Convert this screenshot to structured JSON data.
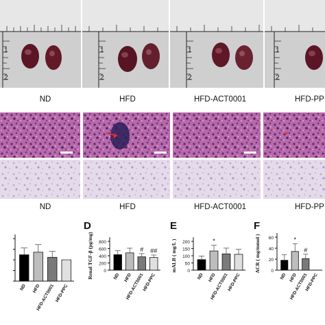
{
  "figure": {
    "groups_row1": [
      "ND",
      "HFD",
      "HFD-ACT0001",
      "HFD-PP"
    ],
    "groups_row2": [
      "ND",
      "HFD",
      "HFD-ACT0001",
      "HFD-PP"
    ],
    "ruler_ticks": [
      "1",
      "2"
    ]
  },
  "chart_data": [
    {
      "type": "bar",
      "panel": "",
      "categories": [
        "ND",
        "HFD",
        "HFD-ACT0001",
        "HFD-PPC"
      ],
      "values": [
        0.62,
        0.68,
        0.56,
        0.5
      ],
      "errors": [
        0.16,
        0.18,
        0.14,
        0.0
      ],
      "colors": [
        "#000000",
        "#bdbdbd",
        "#7a7a7a",
        "#e0e0e0"
      ],
      "marks": [
        "",
        "",
        "",
        ""
      ],
      "ylabel": "",
      "ylim": [
        0,
        1
      ]
    },
    {
      "type": "bar",
      "panel": "D",
      "categories": [
        "ND",
        "HFD",
        "HFD-ACT0001",
        "HFD-PPC"
      ],
      "values": [
        430,
        480,
        370,
        350
      ],
      "errors": [
        110,
        130,
        90,
        70
      ],
      "colors": [
        "#000000",
        "#bdbdbd",
        "#7a7a7a",
        "#e0e0e0"
      ],
      "marks": [
        "",
        "",
        "#",
        "##"
      ],
      "ylabel": "Renal TGF-β (pg/mg)",
      "ytick_labels": [
        "0",
        "200",
        "400",
        "600",
        "800"
      ],
      "ylim": [
        0,
        800
      ]
    },
    {
      "type": "bar",
      "panel": "E",
      "categories": [
        "ND",
        "HFD",
        "HFD-ACT0001",
        "HFD-PPC"
      ],
      "values": [
        73,
        133,
        113,
        110
      ],
      "errors": [
        25,
        40,
        40,
        35
      ],
      "colors": [
        "#000000",
        "#bdbdbd",
        "#7a7a7a",
        "#e0e0e0"
      ],
      "marks": [
        "",
        "*",
        "",
        ""
      ],
      "ylabel": "mALB ( mg/L )",
      "ytick_labels": [
        "0",
        "50",
        "100",
        "150",
        "200"
      ],
      "ylim": [
        0,
        200
      ]
    },
    {
      "type": "bar",
      "panel": "F",
      "categories": [
        "ND",
        "HFD",
        "HFD-ACT0001",
        "HFD-PPC"
      ],
      "values": [
        18,
        34,
        21,
        0
      ],
      "errors": [
        10,
        14,
        8,
        0
      ],
      "colors": [
        "#000000",
        "#bdbdbd",
        "#7a7a7a",
        "#e0e0e0"
      ],
      "marks": [
        "",
        "*",
        "#",
        ""
      ],
      "ylabel": "ACR ( mg/mmol )",
      "ytick_labels": [
        "0",
        "20",
        "40",
        "60"
      ],
      "ylim": [
        0,
        60
      ]
    }
  ]
}
